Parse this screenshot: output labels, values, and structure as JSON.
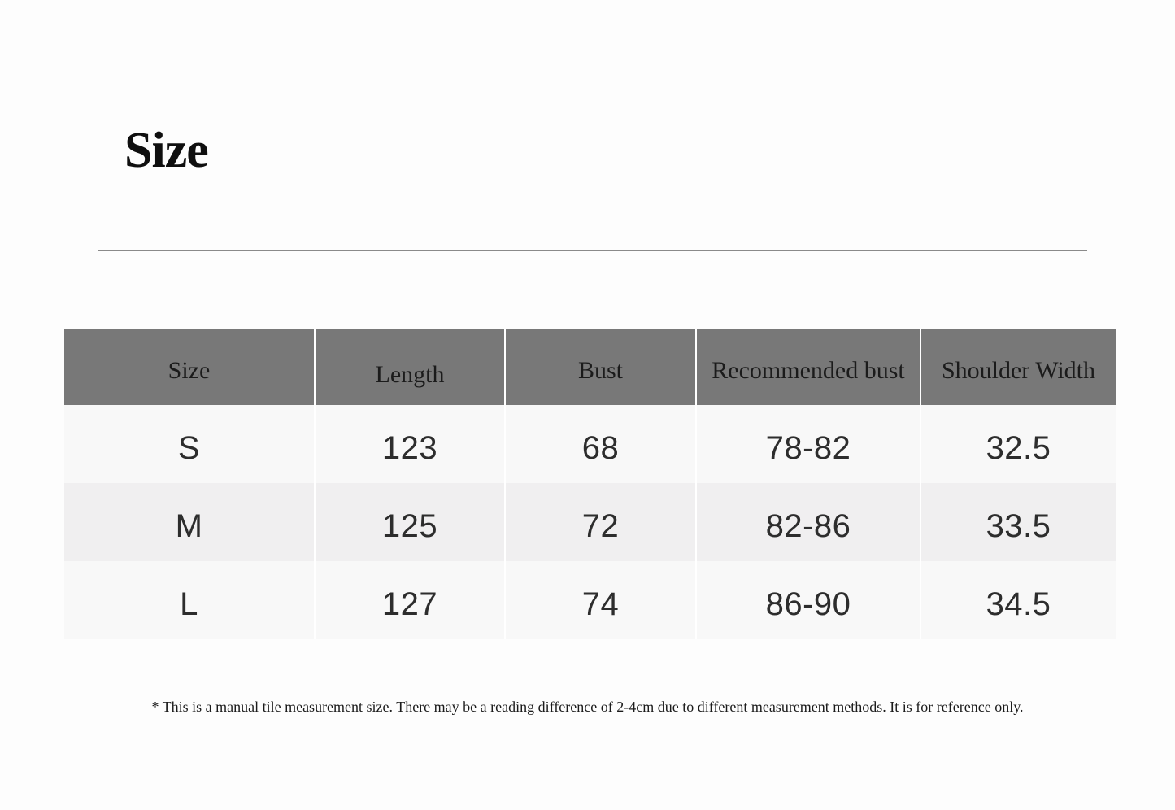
{
  "page": {
    "title": "Size",
    "footnote": "* This is a manual tile measurement size. There may be a reading difference of 2-4cm due to different measurement methods. It is for reference only."
  },
  "size_table": {
    "columns": [
      "Size",
      "Length",
      "Bust",
      "Recommended bust",
      "Shoulder Width"
    ],
    "rows": [
      [
        "S",
        "123",
        "68",
        "78-82",
        "32.5"
      ],
      [
        "M",
        "125",
        "72",
        "82-86",
        "33.5"
      ],
      [
        "L",
        "127",
        "74",
        "86-90",
        "34.5"
      ]
    ]
  },
  "colors": {
    "header_bg": "#787878",
    "header_text": "#1b1b1b",
    "row_bg": "#f8f8f8",
    "row_alt_bg": "#f0eff0",
    "body_text": "#2d2d2d",
    "divider_line": "#8a8a8a",
    "page_bg": "#fdfdfd"
  }
}
